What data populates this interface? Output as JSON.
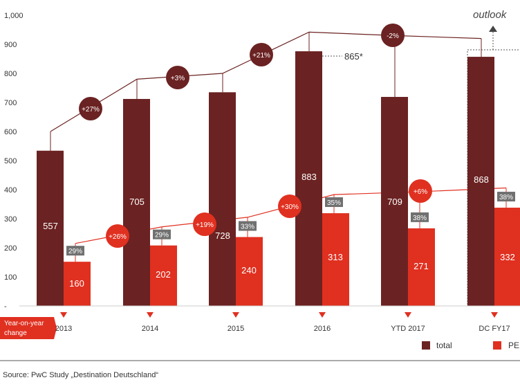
{
  "chart_data": {
    "type": "bar",
    "title": "",
    "xlabel": "",
    "ylabel": "",
    "ylim": [
      0,
      1000
    ],
    "yticks": [
      "1,000",
      "900",
      "800",
      "700",
      "600",
      "500",
      "400",
      "300",
      "200",
      "100",
      "-"
    ],
    "categories": [
      "2013",
      "2014",
      "2015",
      "2016",
      "YTD 2017",
      "DC FY17"
    ],
    "series": [
      {
        "name": "total",
        "color": "#6b2222",
        "values": [
          557,
          705,
          728,
          883,
          709,
          868
        ],
        "bar_heights": [
          534,
          712,
          735,
          876,
          719,
          857
        ],
        "trend_heights": [
          600,
          780,
          800,
          942,
          930,
          920
        ]
      },
      {
        "name": "PE",
        "color": "#e03020",
        "values": [
          160,
          202,
          240,
          313,
          271,
          332
        ],
        "bar_heights": [
          152,
          208,
          237,
          319,
          267,
          338
        ],
        "trend_heights": [
          215,
          272,
          305,
          383,
          393,
          406
        ]
      }
    ],
    "pe_share": [
      "29%",
      "29%",
      "33%",
      "35%",
      "38%",
      "38%"
    ],
    "total_changes": [
      "+27%",
      "+3%",
      "+21%",
      "-2%"
    ],
    "pe_changes": [
      "+26%",
      "+19%",
      "+30%",
      "+6%"
    ],
    "annotation_865": "865*",
    "outlook_label": "outlook",
    "yoy_label": [
      "Year-on-year",
      "change"
    ],
    "legend": [
      "total",
      "PE"
    ],
    "legend_position": "bottom-right",
    "grid": false,
    "source": "Source: PwC Study „Destination Deutschland“"
  }
}
